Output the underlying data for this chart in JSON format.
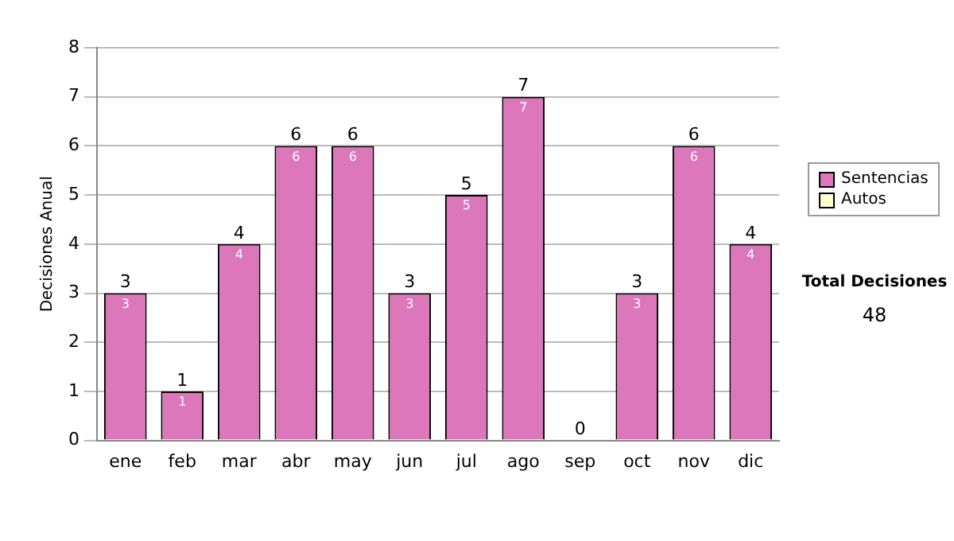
{
  "chart_data": {
    "type": "bar",
    "stacked": true,
    "ylabel": "Decisiones Anual",
    "categories": [
      "ene",
      "feb",
      "mar",
      "abr",
      "may",
      "jun",
      "jul",
      "ago",
      "sep",
      "oct",
      "nov",
      "dic"
    ],
    "series": [
      {
        "name": "Sentencias",
        "color": "#dd77bb",
        "values": [
          3,
          1,
          4,
          6,
          6,
          3,
          5,
          7,
          0,
          3,
          6,
          4
        ],
        "value_labels": [
          "3",
          "1",
          "4",
          "6",
          "6",
          "3",
          "5",
          "7",
          null,
          "3",
          "6",
          "4"
        ]
      },
      {
        "name": "Autos",
        "color": "#ffffcc",
        "values": [
          0,
          0,
          0,
          0,
          0,
          0,
          0,
          0,
          0,
          0,
          0,
          0
        ]
      }
    ],
    "totals": [
      "3",
      "1",
      "4",
      "6",
      "6",
      "3",
      "5",
      "7",
      "0",
      "3",
      "6",
      "4"
    ],
    "ylim": [
      0,
      8
    ],
    "yticks": [
      0,
      1,
      2,
      3,
      4,
      5,
      6,
      7,
      8
    ],
    "grid": "y",
    "legend": "right",
    "annotations": [
      "Total Decisiones",
      "48"
    ]
  }
}
